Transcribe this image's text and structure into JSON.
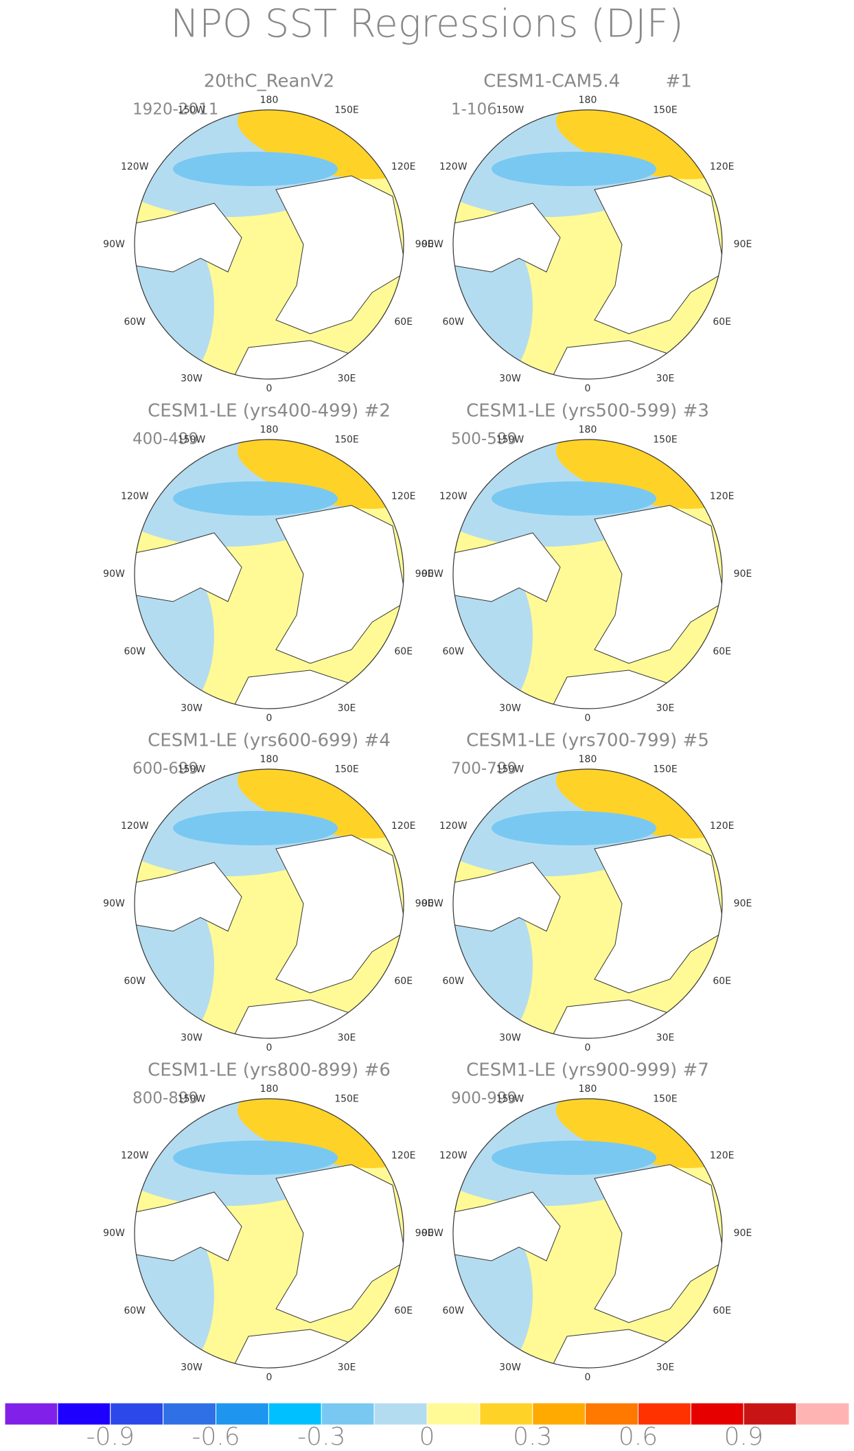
{
  "title": "NPO SST Regressions (DJF)",
  "panels": [
    {
      "title": "20thC_ReanV2",
      "period": "1920-2011"
    },
    {
      "title": "CESM1-CAM5.4        #1",
      "period": "1-106"
    },
    {
      "title": "CESM1-LE (yrs400-499) #2",
      "period": "400-499"
    },
    {
      "title": "CESM1-LE (yrs500-599) #3",
      "period": "500-599"
    },
    {
      "title": "CESM1-LE (yrs600-699) #4",
      "period": "600-699"
    },
    {
      "title": "CESM1-LE (yrs700-799) #5",
      "period": "700-799"
    },
    {
      "title": "CESM1-LE (yrs800-899) #6",
      "period": "800-899"
    },
    {
      "title": "CESM1-LE (yrs900-999) #7",
      "period": "900-999"
    }
  ],
  "lon_labels": [
    "180",
    "150E",
    "120E",
    "90E",
    "60E",
    "30E",
    "0",
    "30W",
    "60W",
    "90W",
    "120W",
    "150W"
  ],
  "colorbar": {
    "colors": [
      "#8020e8",
      "#1e00ff",
      "#2c48e8",
      "#3070e6",
      "#1e96f0",
      "#00c0ff",
      "#78c8f2",
      "#b4dcf0",
      "#fffa96",
      "#ffd228",
      "#ffaa00",
      "#ff7800",
      "#ff3200",
      "#e60000",
      "#c81414",
      "#ffb4b4"
    ],
    "lim": [
      -1.2,
      1.2
    ],
    "ticks": [
      -0.9,
      -0.6,
      -0.3,
      0,
      0.3,
      0.6,
      0.9
    ]
  }
}
